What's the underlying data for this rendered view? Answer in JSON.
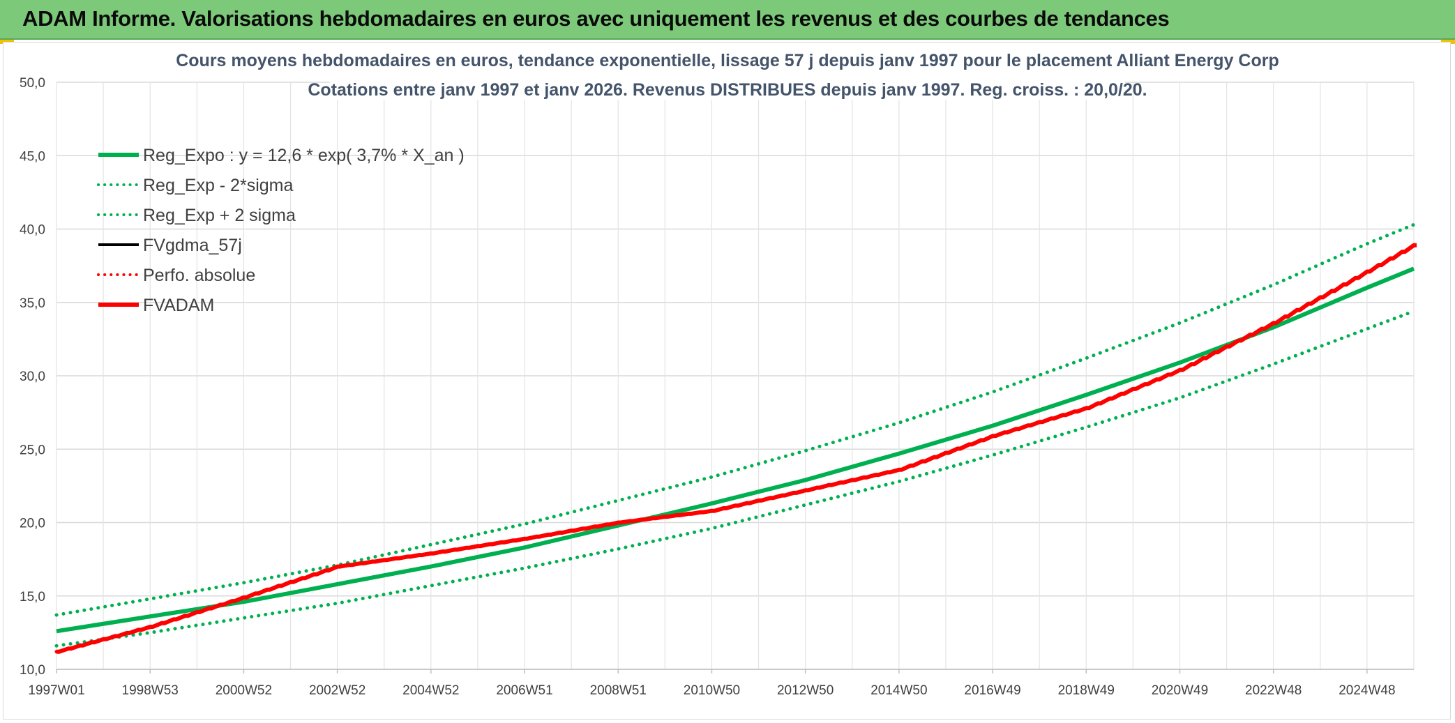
{
  "banner": {
    "title": "ADAM Informe. Valorisations hebdomadaires en euros avec uniquement les revenus et des courbes de tendances",
    "background": "#7dc97a"
  },
  "chart_data": {
    "type": "line",
    "title": "Cours moyens hebdomadaires en euros, tendance exponentielle, lissage 57 j depuis janv 1997 pour le placement Alliant Energy Corp",
    "subtitle": "Cotations entre janv 1997 et janv 2026. Revenus DISTRIBUES depuis janv 1997. Reg. croiss. : 20,0/20.",
    "xlabel": "",
    "ylabel": "",
    "x_range": [
      1997.0,
      2026.0
    ],
    "ylim": [
      10,
      50
    ],
    "y_ticks": [
      "10,0",
      "15,0",
      "20,0",
      "25,0",
      "30,0",
      "35,0",
      "40,0",
      "45,0",
      "50,0"
    ],
    "x_ticks": [
      {
        "label": "1997W01",
        "t": 1997.0
      },
      {
        "label": "1998W53",
        "t": 1999.0
      },
      {
        "label": "2000W52",
        "t": 2001.0
      },
      {
        "label": "2002W52",
        "t": 2003.0
      },
      {
        "label": "2004W52",
        "t": 2005.0
      },
      {
        "label": "2006W51",
        "t": 2007.0
      },
      {
        "label": "2008W51",
        "t": 2009.0
      },
      {
        "label": "2010W50",
        "t": 2011.0
      },
      {
        "label": "2012W50",
        "t": 2013.0
      },
      {
        "label": "2014W50",
        "t": 2015.0
      },
      {
        "label": "2016W49",
        "t": 2017.0
      },
      {
        "label": "2018W49",
        "t": 2019.0
      },
      {
        "label": "2020W49",
        "t": 2021.0
      },
      {
        "label": "2022W48",
        "t": 2023.0
      },
      {
        "label": "2024W48",
        "t": 2025.0
      }
    ],
    "grid": true,
    "legend_position": "top-left",
    "series": [
      {
        "name": "Reg_Expo : y = 12,6 * exp( 3,7% *  X_an )",
        "color": "#00b050",
        "style": "solid",
        "x": [
          1997,
          1999,
          2001,
          2003,
          2005,
          2007,
          2009,
          2011,
          2013,
          2015,
          2017,
          2019,
          2021,
          2023,
          2025,
          2026
        ],
        "values": [
          12.6,
          13.6,
          14.6,
          15.8,
          17.0,
          18.3,
          19.8,
          21.3,
          22.9,
          24.7,
          26.6,
          28.7,
          30.9,
          33.3,
          36.0,
          37.3
        ]
      },
      {
        "name": "Reg_Exp - 2*sigma",
        "color": "#00b050",
        "style": "dotted",
        "x": [
          1997,
          1999,
          2001,
          2003,
          2005,
          2007,
          2009,
          2011,
          2013,
          2015,
          2017,
          2019,
          2021,
          2023,
          2025,
          2026
        ],
        "values": [
          11.6,
          12.5,
          13.5,
          14.5,
          15.7,
          16.9,
          18.2,
          19.6,
          21.2,
          22.8,
          24.6,
          26.5,
          28.5,
          30.8,
          33.2,
          34.4
        ]
      },
      {
        "name": "Reg_Exp + 2 sigma",
        "color": "#00b050",
        "style": "dotted",
        "x": [
          1997,
          1999,
          2001,
          2003,
          2005,
          2007,
          2009,
          2011,
          2013,
          2015,
          2017,
          2019,
          2021,
          2023,
          2025,
          2026
        ],
        "values": [
          13.7,
          14.8,
          15.9,
          17.1,
          18.5,
          19.9,
          21.5,
          23.1,
          24.9,
          26.8,
          28.9,
          31.2,
          33.6,
          36.2,
          39.0,
          40.3
        ]
      },
      {
        "name": "FVgdma_57j",
        "color": "#000000",
        "style": "solid",
        "x": [
          1997,
          1999,
          2001,
          2003,
          2005,
          2007,
          2009,
          2011,
          2013,
          2015,
          2017,
          2019,
          2021,
          2023,
          2025,
          2026
        ],
        "values": [
          11.2,
          12.9,
          14.9,
          17.0,
          17.9,
          18.9,
          20.0,
          20.8,
          22.2,
          23.6,
          25.9,
          27.8,
          30.4,
          33.6,
          37.1,
          38.9
        ]
      },
      {
        "name": "Perfo. absolue",
        "color": "#ff0000",
        "style": "dotted",
        "x": [
          1997,
          1999,
          2001,
          2003,
          2005,
          2007,
          2009,
          2011,
          2013,
          2015,
          2017,
          2019,
          2021,
          2023,
          2025,
          2026
        ],
        "values": [
          11.2,
          12.9,
          14.9,
          17.0,
          17.9,
          18.9,
          20.0,
          20.8,
          22.2,
          23.6,
          25.9,
          27.8,
          30.4,
          33.6,
          37.1,
          38.9
        ]
      },
      {
        "name": "FVADAM",
        "color": "#ff0000",
        "style": "solid",
        "x": [
          1997,
          1999,
          2001,
          2003,
          2005,
          2007,
          2009,
          2011,
          2013,
          2015,
          2017,
          2019,
          2021,
          2023,
          2025,
          2026
        ],
        "values": [
          11.2,
          12.9,
          14.9,
          17.0,
          17.9,
          18.9,
          20.0,
          20.8,
          22.2,
          23.6,
          25.9,
          27.8,
          30.4,
          33.6,
          37.1,
          38.9
        ]
      }
    ]
  }
}
